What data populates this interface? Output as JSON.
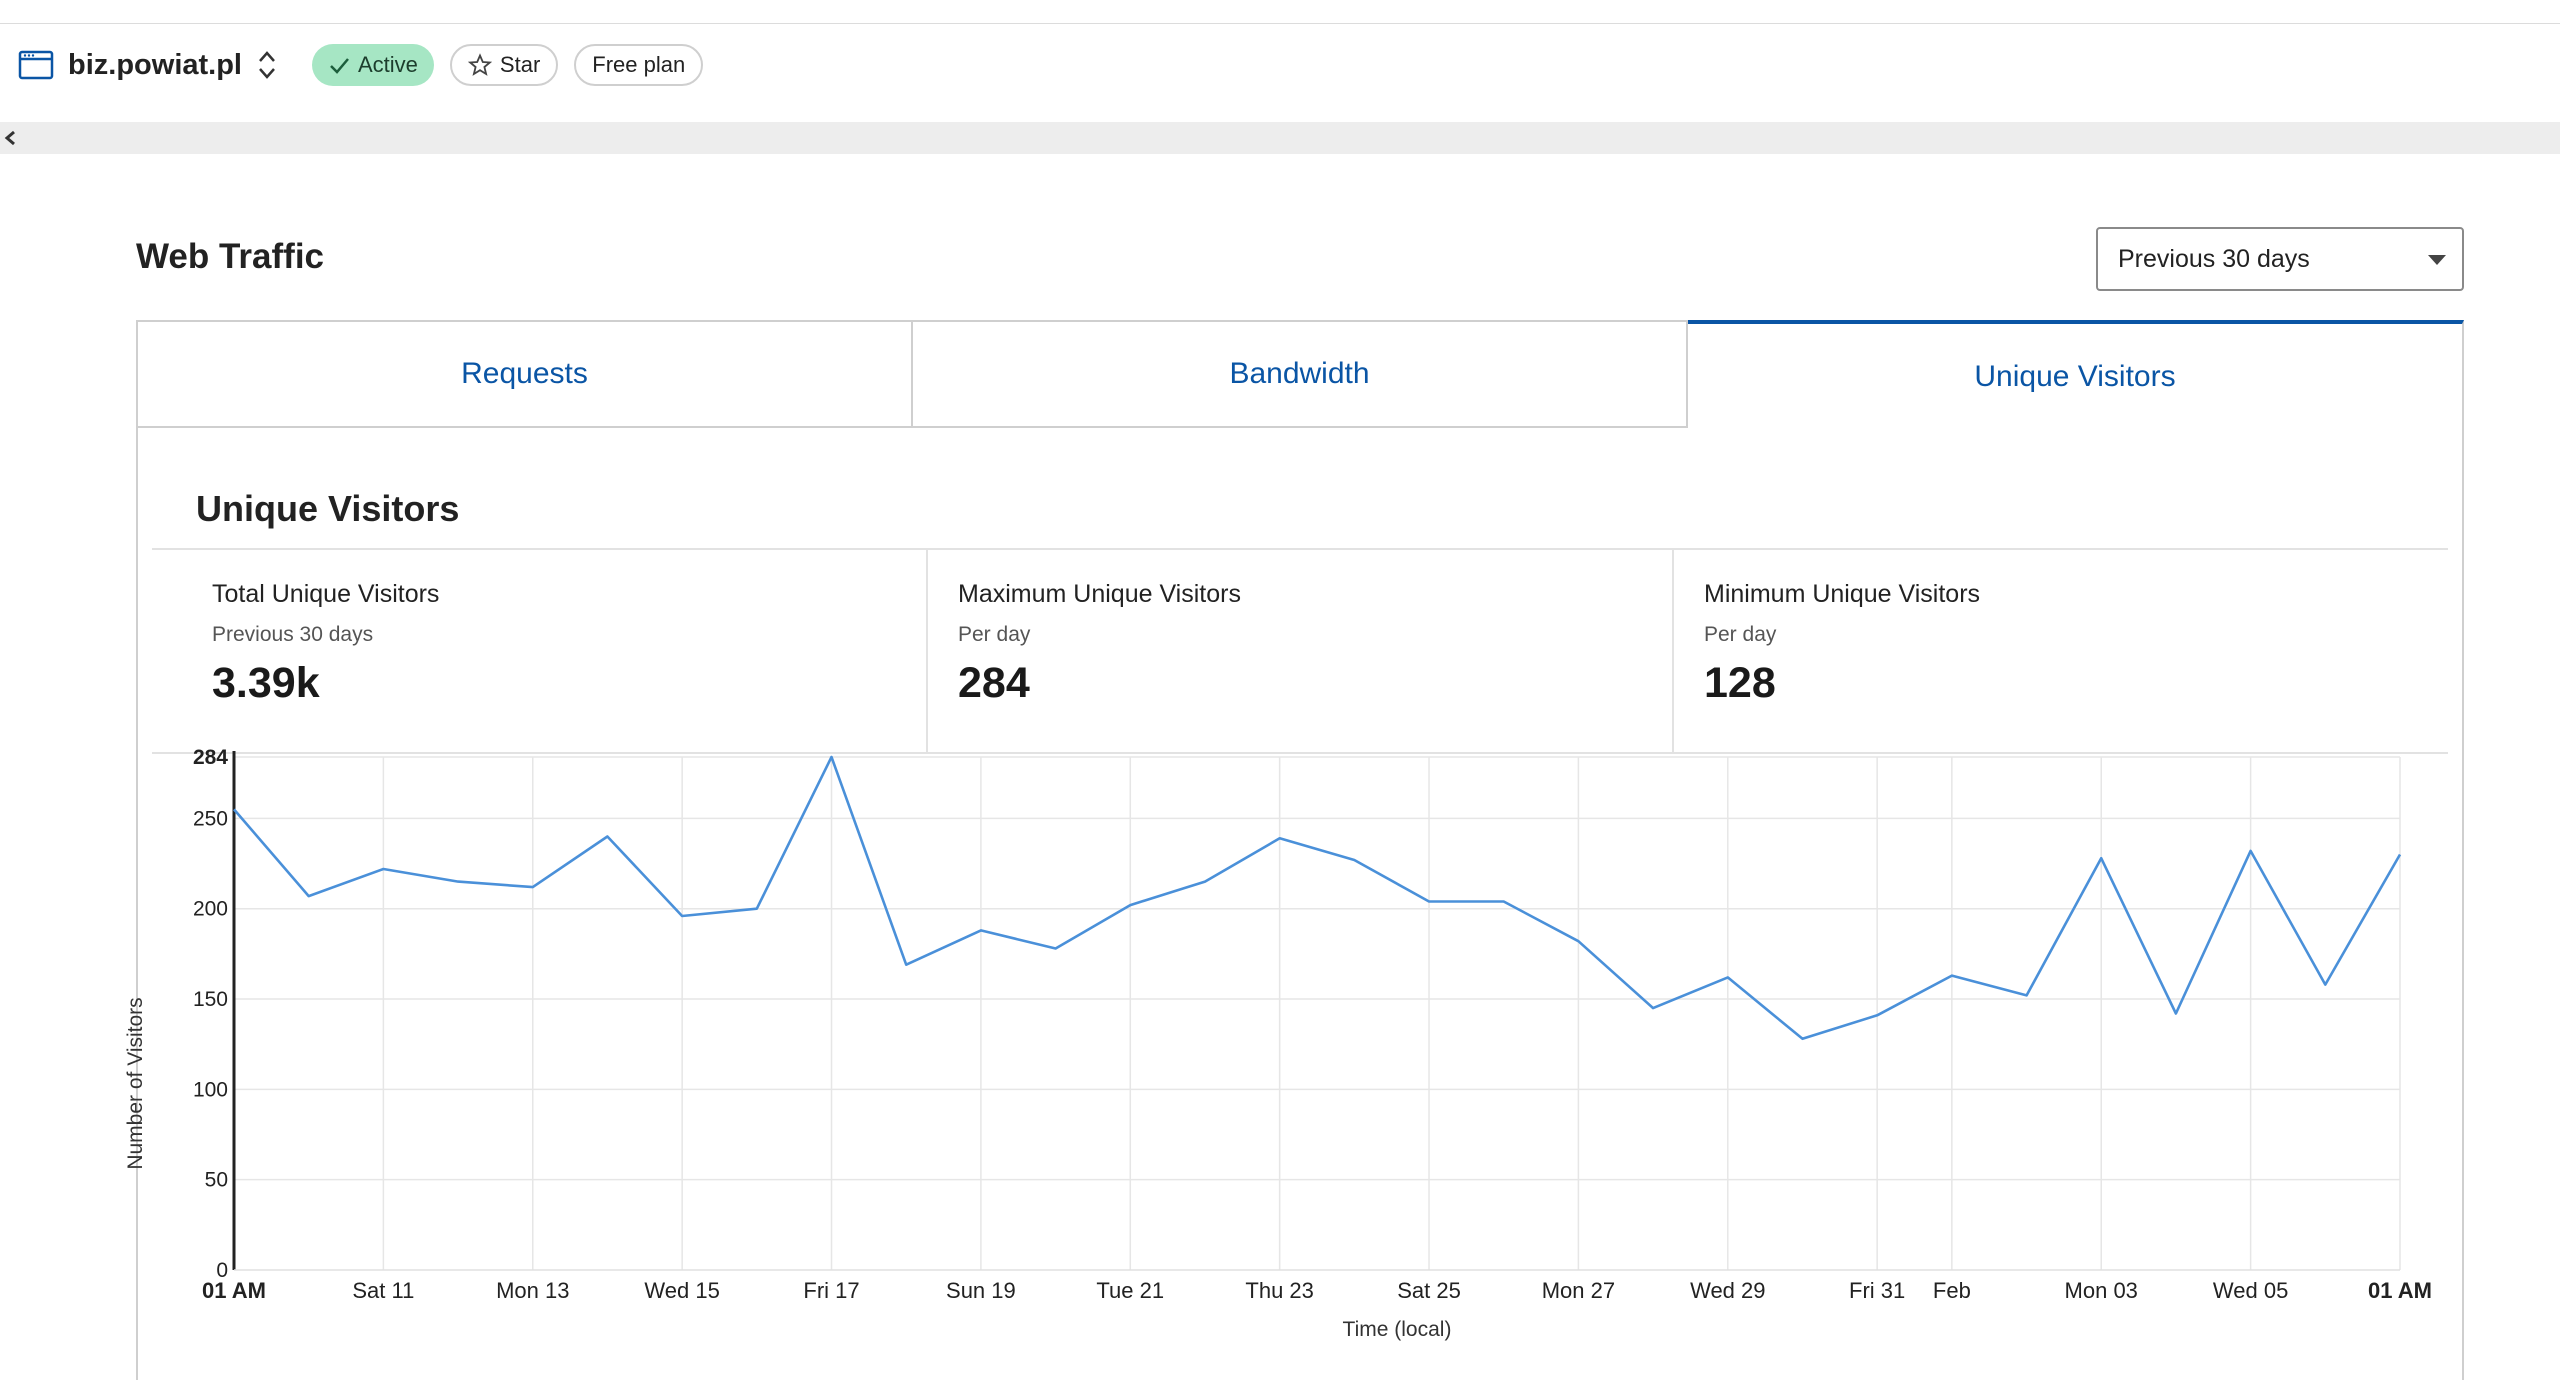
{
  "header": {
    "site_name": "biz.powiat.pl",
    "status_label": "Active",
    "star_label": "Star",
    "plan_label": "Free plan"
  },
  "page": {
    "section_title": "Web Traffic",
    "period_selected": "Previous 30 days"
  },
  "tabs": [
    {
      "label": "Requests",
      "active": false
    },
    {
      "label": "Bandwidth",
      "active": false
    },
    {
      "label": "Unique Visitors",
      "active": true
    }
  ],
  "card": {
    "title": "Unique Visitors",
    "stats": [
      {
        "label": "Total Unique Visitors",
        "sub": "Previous 30 days",
        "value": "3.39k"
      },
      {
        "label": "Maximum Unique Visitors",
        "sub": "Per day",
        "value": "284"
      },
      {
        "label": "Minimum Unique Visitors",
        "sub": "Per day",
        "value": "128"
      }
    ]
  },
  "colors": {
    "accent": "#0a55a5",
    "line": "#4a90d9",
    "active_pill": "#a6e6c4",
    "grid": "#e6e6e6"
  },
  "icons": [
    "browser-window-icon",
    "up-down-switch-icon",
    "checkmark-icon",
    "star-icon",
    "chevron-left-icon",
    "dropdown-caret-icon"
  ],
  "chart_data": {
    "type": "line",
    "xlabel": "Time (local)",
    "ylabel": "Number of Visitors",
    "ylim": [
      0,
      284
    ],
    "yticks": [
      0,
      50,
      100,
      150,
      200,
      250,
      284
    ],
    "bold_yticks": [
      284
    ],
    "grid": true,
    "x_tick_labels": [
      "01 AM",
      "Sat 11",
      "Mon 13",
      "Wed 15",
      "Fri 17",
      "Sun 19",
      "Tue 21",
      "Thu 23",
      "Sat 25",
      "Mon 27",
      "Wed 29",
      "Fri 31",
      "Feb",
      "Mon 03",
      "Wed 05",
      "01 AM"
    ],
    "x_tick_index": [
      0,
      2,
      4,
      6,
      8,
      10,
      12,
      14,
      16,
      18,
      20,
      22,
      23.0,
      25,
      27,
      29
    ],
    "bold_xticks": [
      0,
      15
    ],
    "series": [
      {
        "values": [
          255,
          207,
          222,
          215,
          212,
          240,
          196,
          200,
          284,
          169,
          188,
          178,
          202,
          215,
          239,
          227,
          204,
          204,
          182,
          145,
          162,
          128,
          141,
          163,
          152,
          228,
          142,
          232,
          158,
          230
        ]
      }
    ]
  }
}
